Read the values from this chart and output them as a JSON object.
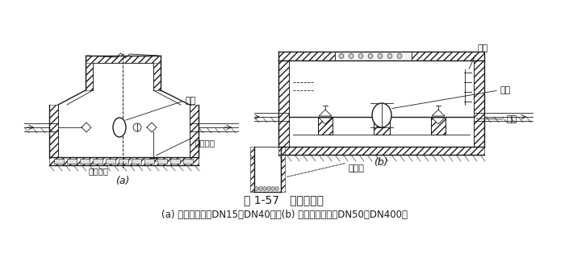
{
  "title": "图 1-57   水表井做法",
  "subtitle": "(a) 无地下水时（DN15～DN40）；(b) 无旁通水表井（DN50～DN400）",
  "label_a": "(a)",
  "label_b": "(b)",
  "ann_shuibiao_a": "水表",
  "ann_xie_shui": "泄水水嘴",
  "ann_luan_shi": "卵石垫层",
  "ann_pa_ti": "爬梯",
  "ann_shuibiao_b": "水表",
  "ann_zhi_dun": "支墩",
  "ann_ji_shui": "集水坑",
  "bg_color": "#ffffff",
  "lc": "#1a1a1a",
  "title_fontsize": 10,
  "sub_fontsize": 8.5
}
